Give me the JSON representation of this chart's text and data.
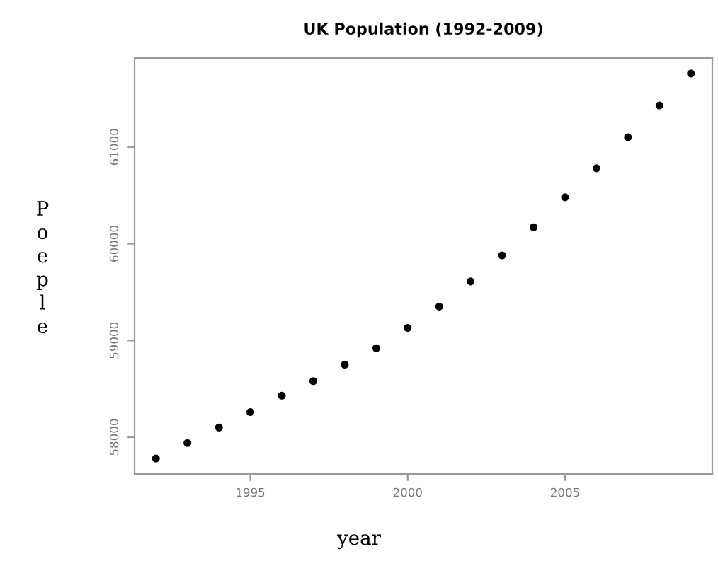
{
  "chart_data": {
    "type": "scatter",
    "title": "UK Population (1992-2009)",
    "xlabel": "year",
    "ylabel": "Poeple",
    "x": [
      1992,
      1993,
      1994,
      1995,
      1996,
      1997,
      1998,
      1999,
      2000,
      2001,
      2002,
      2003,
      2004,
      2005,
      2006,
      2007,
      2008,
      2009
    ],
    "series": [
      {
        "color": "#000000",
        "values": [
          57780,
          57940,
          58100,
          58260,
          58430,
          58580,
          58750,
          58920,
          59130,
          59350,
          59610,
          59880,
          60170,
          60480,
          60780,
          61100,
          61430,
          61760
        ]
      }
    ],
    "xlim": [
      1991.32,
      2009.68
    ],
    "ylim": [
      57620,
      61920
    ],
    "xticks": [
      1995,
      2000,
      2005
    ],
    "yticks": [
      58000,
      59000,
      60000,
      61000
    ],
    "marker": "circle",
    "grid": false,
    "legend": false
  }
}
